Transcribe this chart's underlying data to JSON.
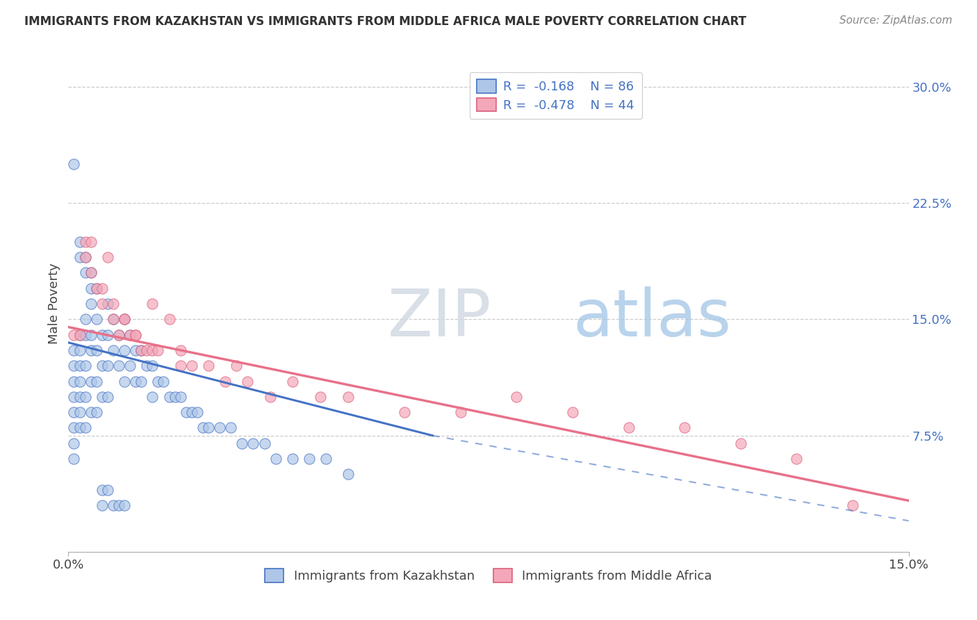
{
  "title": "IMMIGRANTS FROM KAZAKHSTAN VS IMMIGRANTS FROM MIDDLE AFRICA MALE POVERTY CORRELATION CHART",
  "source": "Source: ZipAtlas.com",
  "ylabel": "Male Poverty",
  "ytick_labels": [
    "7.5%",
    "15.0%",
    "22.5%",
    "30.0%"
  ],
  "ytick_values": [
    0.075,
    0.15,
    0.225,
    0.3
  ],
  "xlim": [
    0.0,
    0.15
  ],
  "ylim": [
    0.0,
    0.32
  ],
  "color_kaz": "#aec6e8",
  "color_mid": "#f4a7b9",
  "line_color_kaz": "#4472c4",
  "line_color_mid": "#e8718a",
  "watermark_zip": "ZIP",
  "watermark_atlas": "atlas",
  "legend_label1": "Immigrants from Kazakhstan",
  "legend_label2": "Immigrants from Middle Africa",
  "kaz_x": [
    0.001,
    0.001,
    0.001,
    0.001,
    0.001,
    0.001,
    0.002,
    0.002,
    0.002,
    0.002,
    0.002,
    0.002,
    0.002,
    0.003,
    0.003,
    0.003,
    0.003,
    0.003,
    0.004,
    0.004,
    0.004,
    0.004,
    0.004,
    0.005,
    0.005,
    0.005,
    0.005,
    0.006,
    0.006,
    0.006,
    0.007,
    0.007,
    0.007,
    0.007,
    0.008,
    0.008,
    0.009,
    0.009,
    0.01,
    0.01,
    0.01,
    0.011,
    0.011,
    0.012,
    0.012,
    0.013,
    0.013,
    0.014,
    0.015,
    0.015,
    0.016,
    0.017,
    0.018,
    0.019,
    0.02,
    0.021,
    0.022,
    0.023,
    0.024,
    0.025,
    0.027,
    0.029,
    0.031,
    0.033,
    0.035,
    0.037,
    0.04,
    0.043,
    0.046,
    0.05,
    0.001,
    0.001,
    0.001,
    0.002,
    0.002,
    0.003,
    0.003,
    0.004,
    0.004,
    0.005,
    0.006,
    0.006,
    0.007,
    0.008,
    0.009,
    0.01
  ],
  "kaz_y": [
    0.13,
    0.12,
    0.11,
    0.1,
    0.09,
    0.08,
    0.14,
    0.13,
    0.12,
    0.11,
    0.1,
    0.09,
    0.08,
    0.15,
    0.14,
    0.12,
    0.1,
    0.08,
    0.16,
    0.14,
    0.13,
    0.11,
    0.09,
    0.15,
    0.13,
    0.11,
    0.09,
    0.14,
    0.12,
    0.1,
    0.16,
    0.14,
    0.12,
    0.1,
    0.15,
    0.13,
    0.14,
    0.12,
    0.15,
    0.13,
    0.11,
    0.14,
    0.12,
    0.13,
    0.11,
    0.13,
    0.11,
    0.12,
    0.12,
    0.1,
    0.11,
    0.11,
    0.1,
    0.1,
    0.1,
    0.09,
    0.09,
    0.09,
    0.08,
    0.08,
    0.08,
    0.08,
    0.07,
    0.07,
    0.07,
    0.06,
    0.06,
    0.06,
    0.06,
    0.05,
    0.25,
    0.07,
    0.06,
    0.2,
    0.19,
    0.19,
    0.18,
    0.18,
    0.17,
    0.17,
    0.04,
    0.03,
    0.04,
    0.03,
    0.03,
    0.03
  ],
  "mid_x": [
    0.001,
    0.002,
    0.003,
    0.004,
    0.005,
    0.006,
    0.007,
    0.008,
    0.009,
    0.01,
    0.011,
    0.012,
    0.013,
    0.014,
    0.015,
    0.016,
    0.018,
    0.02,
    0.022,
    0.025,
    0.028,
    0.032,
    0.036,
    0.04,
    0.045,
    0.05,
    0.06,
    0.07,
    0.08,
    0.09,
    0.1,
    0.11,
    0.12,
    0.13,
    0.14,
    0.003,
    0.004,
    0.006,
    0.008,
    0.01,
    0.012,
    0.015,
    0.02,
    0.03
  ],
  "mid_y": [
    0.14,
    0.14,
    0.19,
    0.18,
    0.17,
    0.16,
    0.19,
    0.15,
    0.14,
    0.15,
    0.14,
    0.14,
    0.13,
    0.13,
    0.13,
    0.13,
    0.15,
    0.13,
    0.12,
    0.12,
    0.11,
    0.11,
    0.1,
    0.11,
    0.1,
    0.1,
    0.09,
    0.09,
    0.1,
    0.09,
    0.08,
    0.08,
    0.07,
    0.06,
    0.03,
    0.2,
    0.2,
    0.17,
    0.16,
    0.15,
    0.14,
    0.16,
    0.12,
    0.12
  ]
}
